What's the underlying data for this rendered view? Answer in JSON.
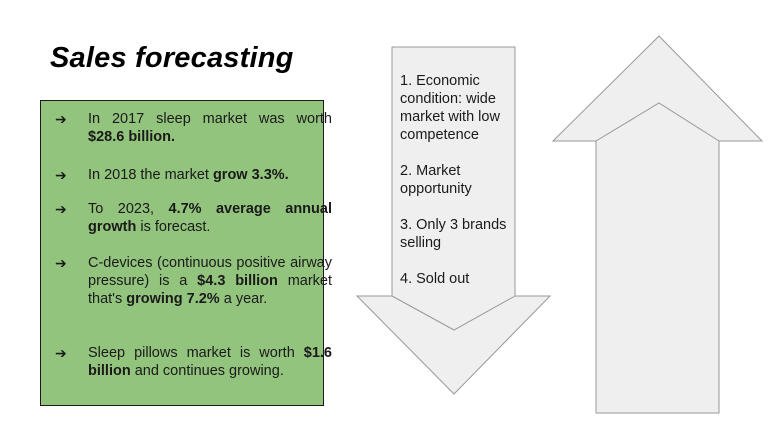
{
  "slide": {
    "title": "Sales forecasting"
  },
  "bullets": [
    {
      "arrow": "➔",
      "parts": [
        {
          "text": "In 2017 sleep market was worth ",
          "bold": false
        },
        {
          "text": "$28.6 billion.",
          "bold": true
        }
      ]
    },
    {
      "arrow": "➔",
      "parts": [
        {
          "text": "In 2018 the market ",
          "bold": false
        },
        {
          "text": "grow 3.3%.",
          "bold": true
        }
      ]
    },
    {
      "arrow": "➔",
      "parts": [
        {
          "text": "To 2023, ",
          "bold": false
        },
        {
          "text": "4.7% average annual growth",
          "bold": true
        },
        {
          "text": " is forecast.",
          "bold": false
        }
      ]
    },
    {
      "arrow": "➔",
      "parts": [
        {
          "text": "C-devices (continuous positive airway pressure) is a ",
          "bold": false
        },
        {
          "text": "$4.3 billion",
          "bold": true
        },
        {
          "text": " market that's ",
          "bold": false
        },
        {
          "text": "growing 7.2%",
          "bold": true
        },
        {
          "text": " a year.",
          "bold": false
        }
      ]
    },
    {
      "arrow": "➔",
      "parts": [
        {
          "text": "Sleep pillows market is worth ",
          "bold": false
        },
        {
          "text": "$1.6 billion",
          "bold": true
        },
        {
          "text": " and continues growing.",
          "bold": false
        }
      ]
    }
  ],
  "down_arrow": {
    "items": [
      "1. Economic condition: wide market with low competence",
      "2. Market opportunity",
      "3. Only 3 brands selling",
      "4. Sold out"
    ]
  },
  "colors": {
    "box_fill": "#93c47d",
    "arrow_fill": "#efefef",
    "arrow_stroke": "#999999"
  }
}
